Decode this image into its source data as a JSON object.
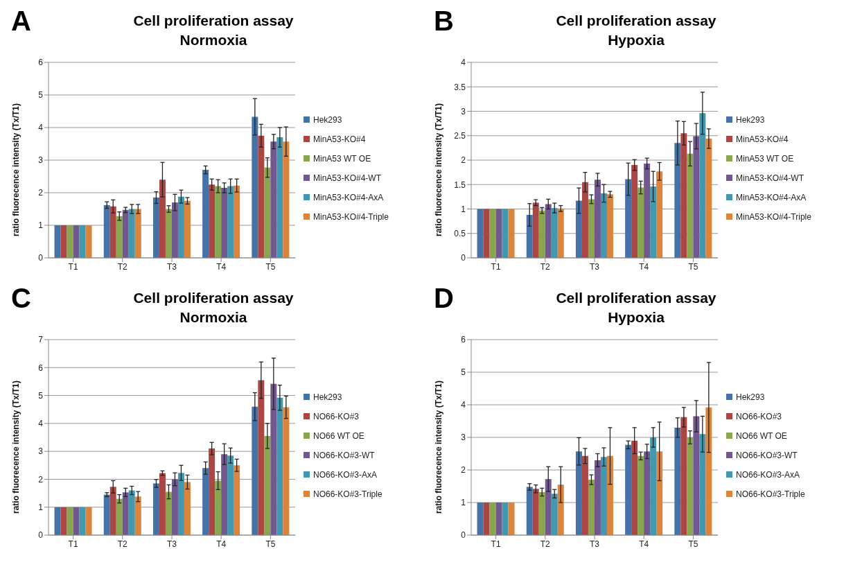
{
  "chart_data": [
    {
      "type": "bar",
      "title": "Cell proliferation assay",
      "subtitle": "Normoxia",
      "annotations": [
        "A"
      ],
      "ylabel": "ratio fluorecence intensity (Tx/T1)",
      "categories": [
        "T1",
        "T2",
        "T3",
        "T4",
        "T5"
      ],
      "ylim": [
        0,
        6
      ],
      "yticks": [
        0,
        1,
        2,
        3,
        4,
        5,
        6
      ],
      "grid": "y",
      "legend": "right",
      "series": [
        {
          "name": "Hek293",
          "color": "#4572a7",
          "values": [
            1,
            1.62,
            1.85,
            2.7,
            4.33
          ],
          "errors": [
            null,
            0.1,
            0.18,
            0.12,
            0.56
          ]
        },
        {
          "name": "MinA53-KO#4",
          "color": "#aa4643",
          "values": [
            1,
            1.58,
            2.4,
            2.25,
            3.75
          ],
          "errors": [
            null,
            0.2,
            0.53,
            0.17,
            0.35
          ]
        },
        {
          "name": "MinA53 WT OE",
          "color": "#89a54e",
          "values": [
            1,
            1.28,
            1.5,
            2.2,
            2.77
          ],
          "errors": [
            null,
            0.13,
            0.1,
            0.2,
            0.3
          ]
        },
        {
          "name": "MinA53-KO#4-WT",
          "color": "#71588f",
          "values": [
            1,
            1.47,
            1.7,
            2.15,
            3.57
          ],
          "errors": [
            null,
            0.08,
            0.25,
            0.15,
            0.22
          ]
        },
        {
          "name": "MinA53-KO#4-AxA",
          "color": "#4198af",
          "values": [
            1,
            1.5,
            1.88,
            2.2,
            3.7
          ],
          "errors": [
            null,
            0.14,
            0.2,
            0.22,
            0.3
          ]
        },
        {
          "name": "MinA53-KO#4-Triple",
          "color": "#db843d",
          "values": [
            1,
            1.5,
            1.75,
            2.22,
            3.57
          ],
          "errors": [
            null,
            0.14,
            0.1,
            0.2,
            0.45
          ]
        }
      ]
    },
    {
      "type": "bar",
      "title": "Cell proliferation assay",
      "subtitle": "Hypoxia",
      "annotations": [
        "B"
      ],
      "ylabel": "ratio fluorecence intensity (Tx/T1)",
      "categories": [
        "T1",
        "T2",
        "T3",
        "T4",
        "T5"
      ],
      "ylim": [
        0,
        4
      ],
      "yticks": [
        0,
        0.5,
        1,
        1.5,
        2,
        2.5,
        3,
        3.5,
        4
      ],
      "grid": "y",
      "legend": "right",
      "series": [
        {
          "name": "Hek293",
          "color": "#4572a7",
          "values": [
            1,
            0.88,
            1.17,
            1.61,
            2.35
          ],
          "errors": [
            null,
            0.23,
            0.26,
            0.33,
            0.45
          ]
        },
        {
          "name": "MinA53-KO#4",
          "color": "#aa4643",
          "values": [
            1,
            1.13,
            1.55,
            1.9,
            2.55
          ],
          "errors": [
            null,
            0.06,
            0.2,
            0.11,
            0.24
          ]
        },
        {
          "name": "MinA53 WT OE",
          "color": "#89a54e",
          "values": [
            1,
            0.97,
            1.2,
            1.44,
            2.13
          ],
          "errors": [
            null,
            0.06,
            0.09,
            0.13,
            0.25
          ]
        },
        {
          "name": "MinA53-KO#4-WT",
          "color": "#71588f",
          "values": [
            1,
            1.1,
            1.6,
            1.93,
            2.49
          ],
          "errors": [
            null,
            0.1,
            0.13,
            0.11,
            0.26
          ]
        },
        {
          "name": "MinA53-KO#4-AxA",
          "color": "#4198af",
          "values": [
            1,
            1.02,
            1.32,
            1.46,
            2.96
          ],
          "errors": [
            null,
            0.1,
            0.18,
            0.31,
            0.43
          ]
        },
        {
          "name": "MinA53-KO#4-Triple",
          "color": "#db843d",
          "values": [
            1,
            1.01,
            1.3,
            1.77,
            2.44
          ],
          "errors": [
            null,
            0.06,
            0.06,
            0.18,
            0.2
          ]
        }
      ]
    },
    {
      "type": "bar",
      "title": "Cell proliferation assay",
      "subtitle": "Normoxia",
      "annotations": [
        "C"
      ],
      "ylabel": "ratio fluorecence intensity (Tx/T1)",
      "categories": [
        "T1",
        "T2",
        "T3",
        "T4",
        "T5"
      ],
      "ylim": [
        0,
        7
      ],
      "yticks": [
        0,
        1,
        2,
        3,
        4,
        5,
        6,
        7
      ],
      "grid": "y",
      "legend": "right",
      "series": [
        {
          "name": "Hek293",
          "color": "#4572a7",
          "values": [
            1,
            1.45,
            1.85,
            2.4,
            4.6
          ],
          "errors": [
            null,
            0.07,
            0.14,
            0.22,
            0.5
          ]
        },
        {
          "name": "NO66-KO#3",
          "color": "#aa4643",
          "values": [
            1,
            1.73,
            2.22,
            3.1,
            5.55
          ],
          "errors": [
            null,
            0.22,
            0.08,
            0.22,
            0.65
          ]
        },
        {
          "name": "NO66 WT OE",
          "color": "#89a54e",
          "values": [
            1,
            1.3,
            1.55,
            1.95,
            3.55
          ],
          "errors": [
            null,
            0.15,
            0.25,
            0.32,
            0.45
          ]
        },
        {
          "name": "NO66-KO#3-WT",
          "color": "#71588f",
          "values": [
            1,
            1.53,
            2,
            2.9,
            5.42
          ],
          "errors": [
            null,
            0.15,
            0.23,
            0.37,
            0.92
          ]
        },
        {
          "name": "NO66-KO#3-AxA",
          "color": "#4198af",
          "values": [
            1,
            1.6,
            2.23,
            2.85,
            4.92
          ],
          "errors": [
            null,
            0.15,
            0.27,
            0.27,
            0.45
          ]
        },
        {
          "name": "NO66-KO#3-Triple",
          "color": "#db843d",
          "values": [
            1,
            1.38,
            1.9,
            2.5,
            4.58
          ],
          "errors": [
            null,
            0.18,
            0.25,
            0.22,
            0.4
          ]
        }
      ]
    },
    {
      "type": "bar",
      "title": "Cell proliferation assay",
      "subtitle": "Hypoxia",
      "annotations": [
        "D"
      ],
      "ylabel": "ratio fluorecence intensity (Tx/T1)",
      "categories": [
        "T1",
        "T2",
        "T3",
        "T4",
        "T5"
      ],
      "ylim": [
        0,
        6
      ],
      "yticks": [
        0,
        1,
        2,
        3,
        4,
        5,
        6
      ],
      "grid": "y",
      "legend": "right",
      "series": [
        {
          "name": "Hek293",
          "color": "#4572a7",
          "values": [
            1,
            1.48,
            2.57,
            2.77,
            3.3
          ],
          "errors": [
            null,
            0.1,
            0.42,
            0.12,
            0.3
          ]
        },
        {
          "name": "NO66-KO#3",
          "color": "#aa4643",
          "values": [
            1,
            1.42,
            2.43,
            2.9,
            3.62
          ],
          "errors": [
            null,
            0.12,
            0.23,
            0.4,
            0.3
          ]
        },
        {
          "name": "NO66 WT OE",
          "color": "#89a54e",
          "values": [
            1,
            1.32,
            1.7,
            2.43,
            3
          ],
          "errors": [
            null,
            0.12,
            0.15,
            0.12,
            0.2
          ]
        },
        {
          "name": "NO66-KO#3-WT",
          "color": "#71588f",
          "values": [
            1,
            1.72,
            2.3,
            2.57,
            3.65
          ],
          "errors": [
            null,
            0.38,
            0.2,
            0.22,
            0.48
          ]
        },
        {
          "name": "NO66-KO#3-AxA",
          "color": "#4198af",
          "values": [
            1,
            1.27,
            2.4,
            3,
            3.1
          ],
          "errors": [
            null,
            0.13,
            0.28,
            0.3,
            0.55
          ]
        },
        {
          "name": "NO66-KO#3-Triple",
          "color": "#db843d",
          "values": [
            1,
            1.55,
            2.43,
            2.57,
            3.92
          ],
          "errors": [
            null,
            0.55,
            0.87,
            0.9,
            1.38
          ]
        }
      ]
    }
  ]
}
